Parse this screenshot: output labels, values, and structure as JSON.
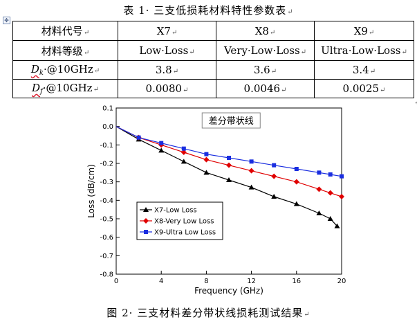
{
  "table_caption": "表 1· 三支低损耗材料特性参数表",
  "para_mark": "↵",
  "table": {
    "header": [
      "材料代号",
      "X7",
      "X8",
      "X9"
    ],
    "grade_row": [
      "材料等级",
      "Low·Loss",
      "Very·Low·Loss",
      "Ultra·Low·Loss"
    ],
    "dk_row": {
      "symbol": "D",
      "sub": "k",
      "label_rest": "·@10GHz",
      "values": [
        "3.8",
        "3.6",
        "3.4"
      ]
    },
    "df_row": {
      "symbol": "D",
      "sub": "f",
      "label_rest": "·@10GHz",
      "values": [
        "0.0080",
        "0.0046",
        "0.0025"
      ]
    }
  },
  "figure_caption": "图 2· 三支材料差分带状线损耗测试结果",
  "chart_data": {
    "type": "line",
    "title": "差分带状线",
    "xlabel": "Frequency (GHz)",
    "ylabel": "Loss (dB/cm)",
    "xlim": [
      0,
      20
    ],
    "ylim": [
      -0.8,
      0.1
    ],
    "xticks": [
      0,
      4,
      8,
      12,
      16,
      20
    ],
    "yticks": [
      0.1,
      0.0,
      -0.1,
      -0.2,
      -0.3,
      -0.4,
      -0.5,
      -0.6,
      -0.7,
      -0.8
    ],
    "legend_position": "bottom-left",
    "series": [
      {
        "name": "X7-Low Loss",
        "color": "#000000",
        "marker": "triangle",
        "x": [
          0,
          2,
          4,
          6,
          8,
          10,
          12,
          14,
          16,
          18,
          19,
          19.6
        ],
        "y": [
          0.0,
          -0.07,
          -0.13,
          -0.19,
          -0.25,
          -0.29,
          -0.33,
          -0.38,
          -0.42,
          -0.47,
          -0.5,
          -0.54
        ]
      },
      {
        "name": "X8-Very Low Loss",
        "color": "#e00000",
        "marker": "diamond",
        "x": [
          0,
          2,
          4,
          6,
          8,
          10,
          12,
          14,
          16,
          18,
          19,
          20
        ],
        "y": [
          0.0,
          -0.06,
          -0.1,
          -0.14,
          -0.18,
          -0.21,
          -0.24,
          -0.27,
          -0.3,
          -0.34,
          -0.36,
          -0.38
        ]
      },
      {
        "name": "X9-Ultra Low Loss",
        "color": "#1a2ee0",
        "marker": "square",
        "x": [
          0,
          2,
          4,
          6,
          8,
          10,
          12,
          14,
          16,
          18,
          19,
          20
        ],
        "y": [
          0.0,
          -0.06,
          -0.09,
          -0.12,
          -0.15,
          -0.17,
          -0.19,
          -0.21,
          -0.23,
          -0.25,
          -0.26,
          -0.27
        ]
      }
    ]
  }
}
